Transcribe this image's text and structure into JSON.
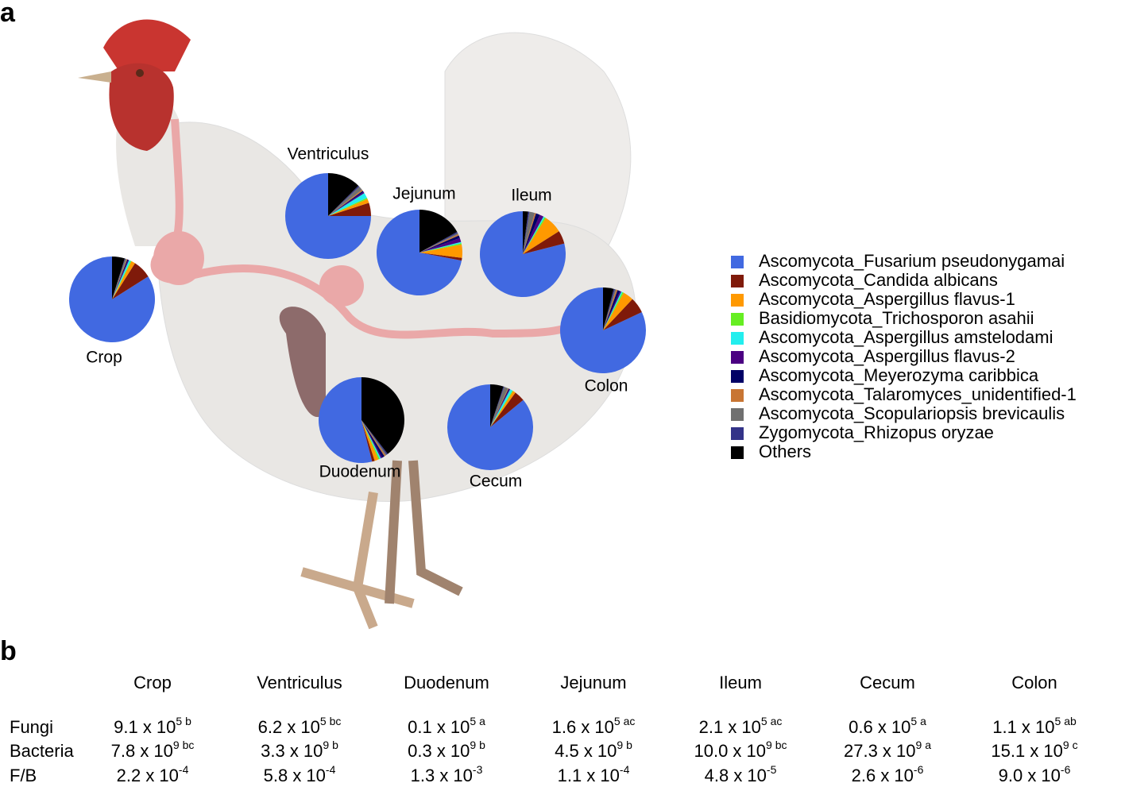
{
  "panel_a": "a",
  "panel_b": "b",
  "legend": {
    "categories": [
      "Ascomycota_Fusarium pseudonygamai",
      "Ascomycota_Candida albicans",
      "Ascomycota_Aspergillus flavus-1",
      "Basidiomycota_Trichosporon asahii",
      "Ascomycota_Aspergillus amstelodami",
      "Ascomycota_Aspergillus flavus-2",
      "Ascomycota_Meyerozyma caribbica",
      "Ascomycota_Talaromyces_unidentified-1",
      "Ascomycota_Scopulariopsis brevicaulis",
      "Zygomycota_Rhizopus oryzae",
      "Others"
    ],
    "colors": [
      "#4169e1",
      "#7f1a0a",
      "#ff9900",
      "#66ee22",
      "#22eeee",
      "#4b0082",
      "#000066",
      "#c87533",
      "#707070",
      "#333388",
      "#000000"
    ]
  },
  "chart_data": [
    {
      "type": "pie",
      "title": "Crop",
      "values": [
        84,
        7,
        1.5,
        0.3,
        0.7,
        0.3,
        0.4,
        0.3,
        0.5,
        0.2,
        4.8
      ]
    },
    {
      "type": "pie",
      "title": "Ventriculus",
      "values": [
        75,
        5,
        1.5,
        0.5,
        2,
        0.5,
        0.5,
        0.5,
        1.5,
        0.5,
        12.5
      ]
    },
    {
      "type": "pie",
      "title": "Jejunum",
      "values": [
        72,
        1,
        5,
        0.5,
        0.5,
        1.5,
        1,
        0.5,
        0.5,
        0.5,
        17
      ]
    },
    {
      "type": "pie",
      "title": "Ileum",
      "values": [
        79,
        5,
        7,
        0.5,
        0.5,
        1.5,
        1.5,
        0.5,
        2,
        0.5,
        2
      ]
    },
    {
      "type": "pie",
      "title": "Colon",
      "values": [
        82,
        6,
        4,
        0.5,
        0.5,
        0.5,
        1,
        0.5,
        0.5,
        0.5,
        4
      ]
    },
    {
      "type": "pie",
      "title": "Duodenum",
      "values": [
        54,
        1,
        1.5,
        0.5,
        0.5,
        0.5,
        1,
        0.5,
        0.5,
        0.5,
        39.5
      ]
    },
    {
      "type": "pie",
      "title": "Cecum",
      "values": [
        86,
        4,
        1,
        0.3,
        1,
        0.3,
        0.3,
        0.3,
        1.5,
        0.3,
        5
      ]
    }
  ],
  "table": {
    "columns": [
      "Crop",
      "Ventriculus",
      "Duodenum",
      "Jejunum",
      "Ileum",
      "Cecum",
      "Colon"
    ],
    "rows": [
      {
        "label": "Fungi",
        "cells": [
          {
            "base": "9.1 x 10",
            "sup": "5 b"
          },
          {
            "base": "6.2 x 10",
            "sup": "5 bc"
          },
          {
            "base": "0.1 x 10",
            "sup": "5 a"
          },
          {
            "base": "1.6 x 10",
            "sup": "5 ac"
          },
          {
            "base": "2.1 x 10",
            "sup": "5 ac"
          },
          {
            "base": "0.6 x 10",
            "sup": "5 a"
          },
          {
            "base": "1.1 x 10",
            "sup": "5 ab"
          }
        ]
      },
      {
        "label": "Bacteria",
        "cells": [
          {
            "base": "7.8 x 10",
            "sup": "9 bc"
          },
          {
            "base": "3.3 x 10",
            "sup": "9 b"
          },
          {
            "base": "0.3 x 10",
            "sup": "9 b"
          },
          {
            "base": "4.5 x 10",
            "sup": "9 b"
          },
          {
            "base": "10.0 x 10",
            "sup": "9 bc"
          },
          {
            "base": "27.3 x 10",
            "sup": "9 a"
          },
          {
            "base": "15.1 x 10",
            "sup": "9 c"
          }
        ]
      },
      {
        "label": "F/B",
        "cells": [
          {
            "base": "2.2 x 10",
            "sup": "-4"
          },
          {
            "base": "5.8 x 10",
            "sup": "-4"
          },
          {
            "base": "1.3 x 10",
            "sup": "-3"
          },
          {
            "base": "1.1 x 10",
            "sup": "-4"
          },
          {
            "base": "4.8 x 10",
            "sup": "-5"
          },
          {
            "base": "2.6 x 10",
            "sup": "-6"
          },
          {
            "base": "9.0 x 10",
            "sup": "-6"
          }
        ]
      }
    ]
  }
}
